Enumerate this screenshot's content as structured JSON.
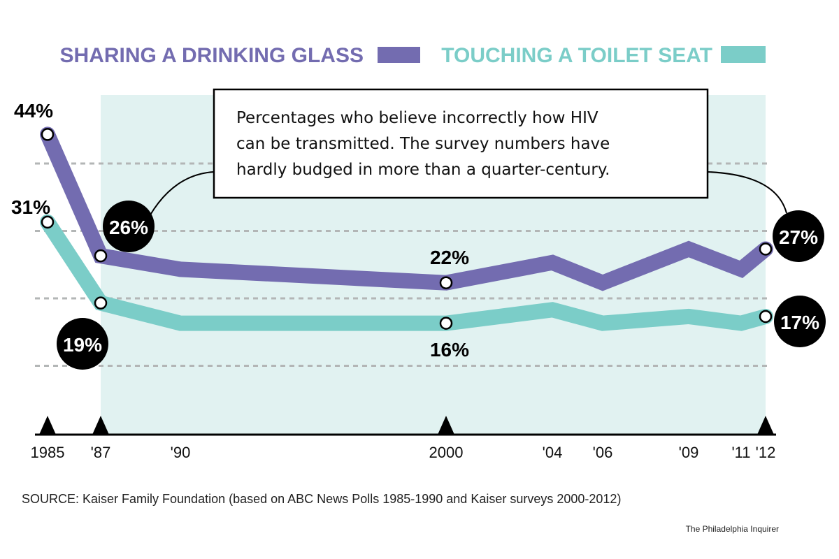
{
  "chart_data": {
    "type": "line",
    "title": "",
    "annotation": [
      "Percentages who believe incorrectly how HIV",
      "can be transmitted. The survey numbers have",
      "hardly budged in more than a quarter-century."
    ],
    "x": [
      1985,
      1987,
      1990,
      2000,
      2004,
      2006,
      2009,
      2011,
      2012
    ],
    "tick_labels": [
      "1985",
      "'87",
      "'90",
      "2000",
      "'04",
      "'06",
      "'09",
      "'11",
      "'12"
    ],
    "marked_years": [
      1985,
      1987,
      2000,
      2012
    ],
    "shaded_range": [
      1987,
      2012
    ],
    "ylim": [
      0,
      45
    ],
    "gridlines": [
      10,
      20,
      30,
      40
    ],
    "grid": true,
    "legend_position": "top",
    "series": [
      {
        "name": "SHARING A DRINKING GLASS",
        "color": "#736cb0",
        "values": [
          44,
          26,
          24,
          22,
          25,
          22,
          27,
          24,
          27
        ],
        "labels": [
          {
            "year": 1985,
            "text": "44%",
            "style": "plain"
          },
          {
            "year": 1987,
            "text": "26%",
            "style": "circle"
          },
          {
            "year": 2000,
            "text": "22%",
            "style": "plain"
          },
          {
            "year": 2012,
            "text": "27%",
            "style": "circle"
          }
        ]
      },
      {
        "name": "TOUCHING A TOILET SEAT",
        "color": "#7bcdc8",
        "values": [
          31,
          19,
          16,
          16,
          18,
          16,
          17,
          16,
          17
        ],
        "labels": [
          {
            "year": 1985,
            "text": "31%",
            "style": "plain"
          },
          {
            "year": 1987,
            "text": "19%",
            "style": "circle"
          },
          {
            "year": 2000,
            "text": "16%",
            "style": "plain"
          },
          {
            "year": 2012,
            "text": "17%",
            "style": "circle"
          }
        ]
      }
    ],
    "colors": {
      "shade": "#e1f2f1",
      "grid": "#b3b6b6",
      "axis": "#000000"
    }
  },
  "footer": {
    "source": "SOURCE: Kaiser Family Foundation (based on ABC News Polls 1985-1990 and Kaiser surveys 2000-2012)",
    "credit": "The Philadelphia Inquirer"
  }
}
